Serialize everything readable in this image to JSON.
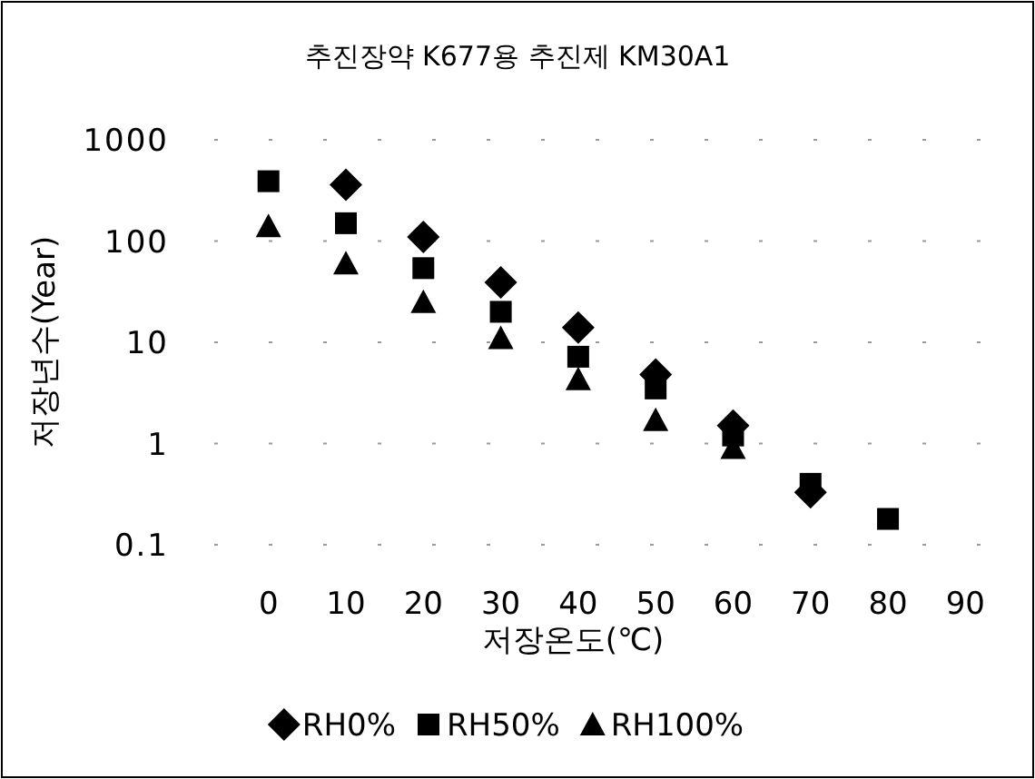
{
  "chart_data": {
    "type": "scatter",
    "title": "추진장약 K677용 추진제 KM30A1",
    "xlabel": "저장온도(℃)",
    "ylabel": "저장년수(Year)",
    "x": [
      0,
      10,
      20,
      30,
      40,
      50,
      60,
      70,
      80
    ],
    "series": [
      {
        "name": "RH0%",
        "color": "#000000",
        "marker": "diamond",
        "values": [
          null,
          360,
          110,
          39,
          14,
          4.8,
          1.5,
          0.33,
          null
        ]
      },
      {
        "name": "RH50%",
        "color": "#000000",
        "marker": "square",
        "values": [
          390,
          150,
          54,
          20,
          7.2,
          3.5,
          1.2,
          0.4,
          0.18
        ]
      },
      {
        "name": "RH100%",
        "color": "#000000",
        "marker": "triangle",
        "values": [
          140,
          60,
          25,
          11,
          4.3,
          1.7,
          0.9,
          null,
          null
        ]
      }
    ],
    "log": "y",
    "xlim": [
      -7,
      95
    ],
    "ylim": [
      0.1,
      1000
    ],
    "xticks": [
      0,
      10,
      20,
      30,
      40,
      50,
      60,
      70,
      80,
      90
    ],
    "yticks": [
      0.1,
      1,
      10,
      100,
      1000
    ],
    "grid": "y",
    "legend": "bottom"
  }
}
